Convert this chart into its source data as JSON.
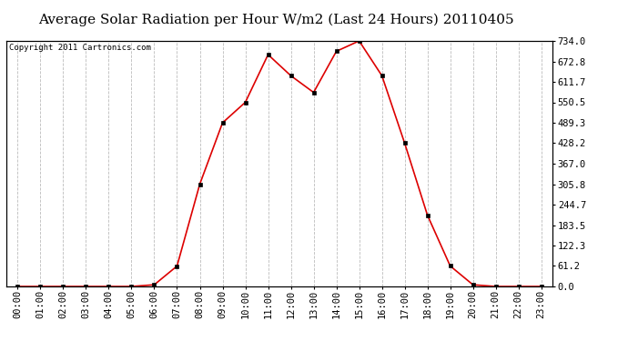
{
  "title": "Average Solar Radiation per Hour W/m2 (Last 24 Hours) 20110405",
  "copyright": "Copyright 2011 Cartronics.com",
  "hours": [
    "00:00",
    "01:00",
    "02:00",
    "03:00",
    "04:00",
    "05:00",
    "06:00",
    "07:00",
    "08:00",
    "09:00",
    "10:00",
    "11:00",
    "12:00",
    "13:00",
    "14:00",
    "15:00",
    "16:00",
    "17:00",
    "18:00",
    "19:00",
    "20:00",
    "21:00",
    "22:00",
    "23:00"
  ],
  "values": [
    0.0,
    0.0,
    0.0,
    0.0,
    0.0,
    0.0,
    5.0,
    61.0,
    305.8,
    489.3,
    550.5,
    693.0,
    630.0,
    580.0,
    703.0,
    734.0,
    630.0,
    428.2,
    213.0,
    61.2,
    5.0,
    0.0,
    0.0,
    0.0
  ],
  "line_color": "#dd0000",
  "marker_color": "#000000",
  "background_color": "#ffffff",
  "plot_bg_color": "#ffffff",
  "grid_color": "#bbbbbb",
  "title_bg_color": "#ffffff",
  "yticks": [
    0.0,
    61.2,
    122.3,
    183.5,
    244.7,
    305.8,
    367.0,
    428.2,
    489.3,
    550.5,
    611.7,
    672.8,
    734.0
  ],
  "ymax": 734.0,
  "ymin": 0.0,
  "title_fontsize": 11,
  "copyright_fontsize": 6.5,
  "tick_fontsize": 7.5,
  "ytick_labels": [
    "0.0",
    "61.2",
    "122.3",
    "183.5",
    "244.7",
    "305.8",
    "367.0",
    "428.2",
    "489.3",
    "550.5",
    "611.7",
    "672.8",
    "734.0"
  ]
}
